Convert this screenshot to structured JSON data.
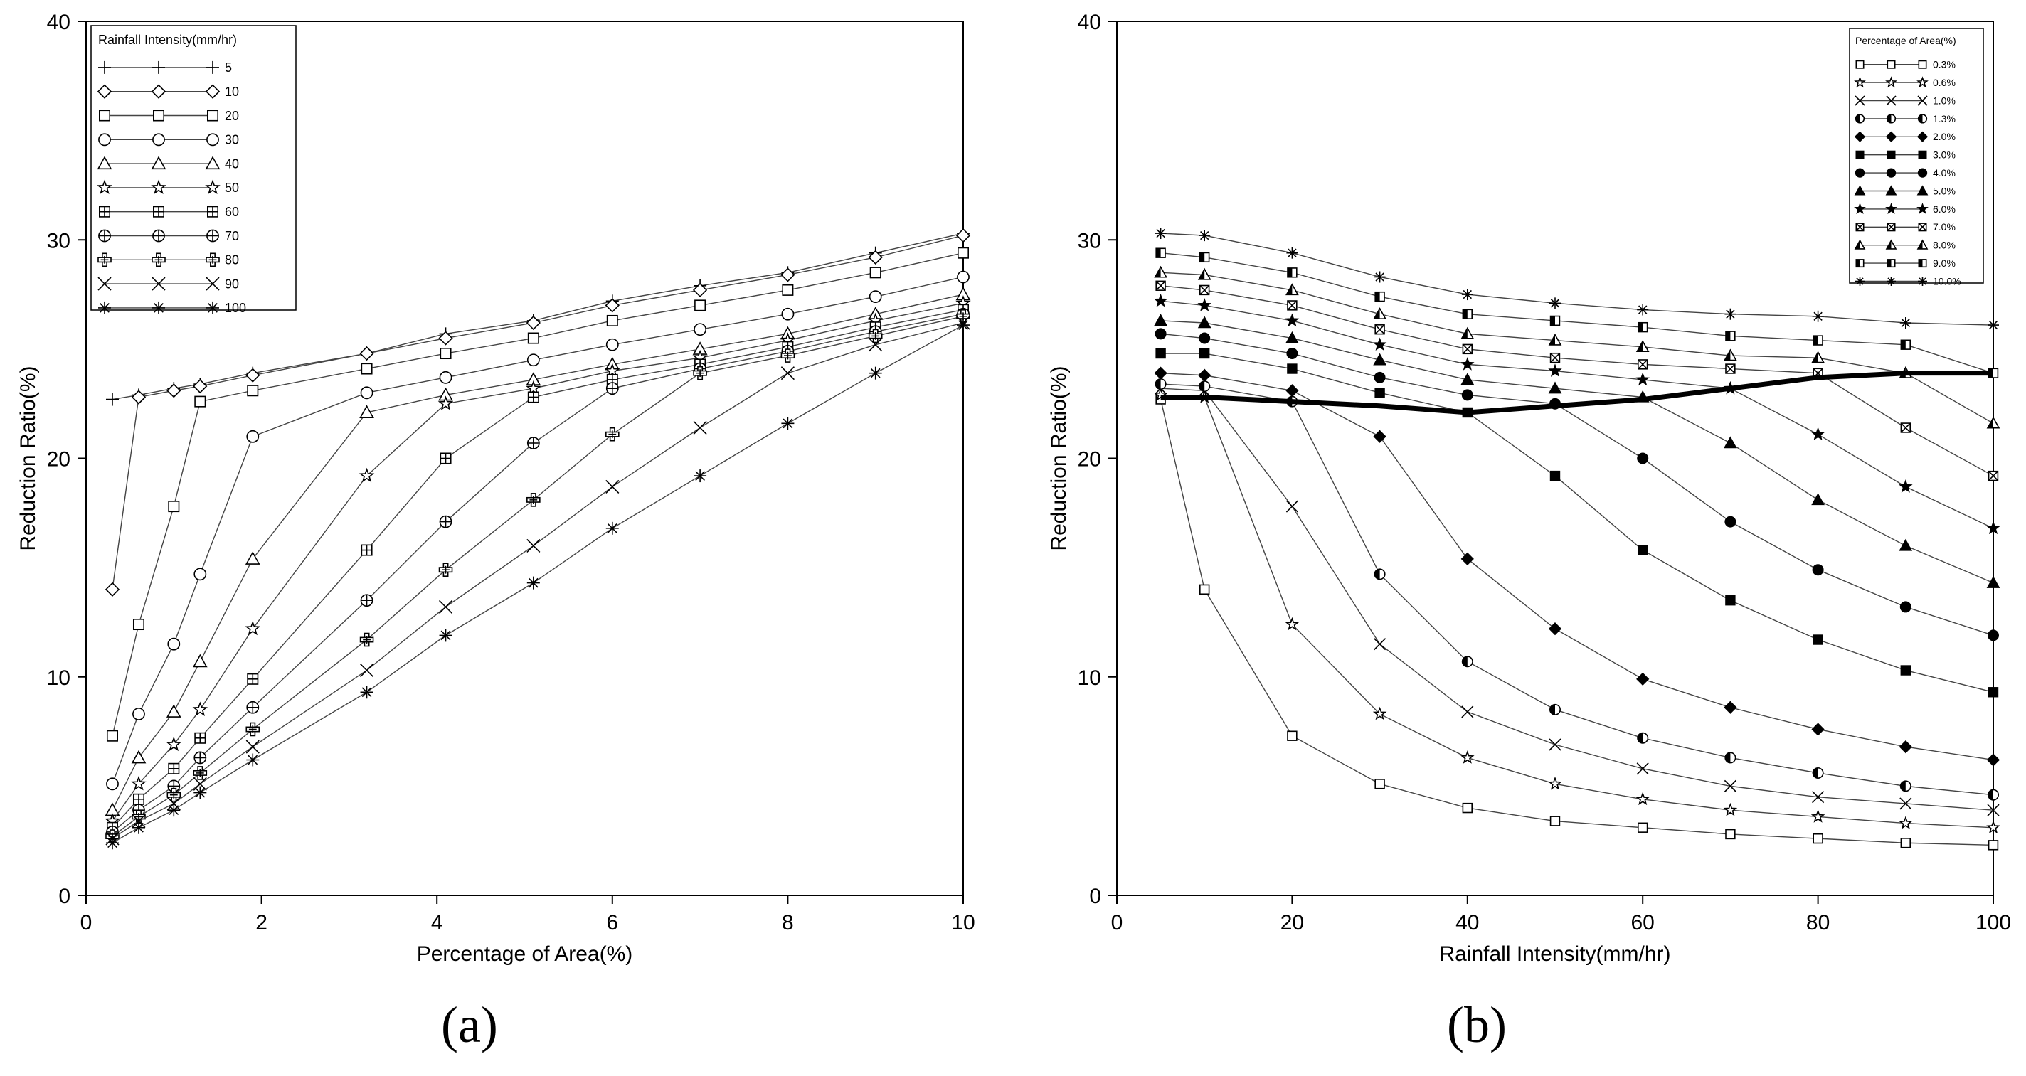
{
  "chart_data": [
    {
      "type": "line",
      "caption": "(a)",
      "xlabel": "Percentage of Area(%)",
      "ylabel": "Reduction Ratio(%)",
      "xlim": [
        0,
        10
      ],
      "ylim": [
        0,
        40
      ],
      "xticks": [
        0,
        2,
        4,
        6,
        8,
        10
      ],
      "yticks": [
        0,
        10,
        20,
        30,
        40
      ],
      "legend_title": "Rainfall Intensity(mm/hr)",
      "legend_position": "top-left",
      "x": [
        0.3,
        0.6,
        1.0,
        1.3,
        1.9,
        3.2,
        4.1,
        5.1,
        6.0,
        7.0,
        8.0,
        9.0,
        10.0
      ],
      "series": [
        {
          "name": "5",
          "marker": "plus",
          "values": [
            22.7,
            22.9,
            23.2,
            23.4,
            23.9,
            24.8,
            25.7,
            26.3,
            27.2,
            27.9,
            28.5,
            29.4,
            30.3
          ]
        },
        {
          "name": "10",
          "marker": "diamond",
          "values": [
            14.0,
            22.8,
            23.1,
            23.3,
            23.8,
            24.8,
            25.5,
            26.2,
            27.0,
            27.7,
            28.4,
            29.2,
            30.2
          ]
        },
        {
          "name": "20",
          "marker": "square",
          "values": [
            7.3,
            12.4,
            17.8,
            22.6,
            23.1,
            24.1,
            24.8,
            25.5,
            26.3,
            27.0,
            27.7,
            28.5,
            29.4
          ]
        },
        {
          "name": "30",
          "marker": "circle",
          "values": [
            5.1,
            8.3,
            11.5,
            14.7,
            21.0,
            23.0,
            23.7,
            24.5,
            25.2,
            25.9,
            26.6,
            27.4,
            28.3
          ]
        },
        {
          "name": "40",
          "marker": "triangle",
          "values": [
            3.9,
            6.3,
            8.4,
            10.7,
            15.4,
            22.1,
            22.9,
            23.6,
            24.3,
            25.0,
            25.7,
            26.6,
            27.5
          ]
        },
        {
          "name": "50",
          "marker": "star",
          "values": [
            3.4,
            5.1,
            6.9,
            8.5,
            12.2,
            19.2,
            22.5,
            23.2,
            24.0,
            24.6,
            25.4,
            26.3,
            27.1
          ]
        },
        {
          "name": "60",
          "marker": "square-plus",
          "values": [
            3.1,
            4.4,
            5.8,
            7.2,
            9.9,
            15.8,
            20.0,
            22.8,
            23.6,
            24.3,
            25.1,
            26.0,
            26.8
          ]
        },
        {
          "name": "70",
          "marker": "circle-plus",
          "values": [
            2.9,
            3.9,
            5.0,
            6.3,
            8.6,
            13.5,
            17.1,
            20.7,
            23.2,
            24.1,
            24.9,
            25.8,
            26.6
          ]
        },
        {
          "name": "80",
          "marker": "bold-plus",
          "values": [
            2.7,
            3.6,
            4.6,
            5.6,
            7.6,
            11.7,
            14.9,
            18.1,
            21.1,
            23.9,
            24.7,
            25.6,
            26.5
          ]
        },
        {
          "name": "90",
          "marker": "x",
          "values": [
            2.6,
            3.4,
            4.2,
            5.1,
            6.8,
            10.3,
            13.2,
            16.0,
            18.7,
            21.4,
            23.9,
            25.2,
            26.2
          ]
        },
        {
          "name": "100",
          "marker": "asterisk",
          "values": [
            2.4,
            3.1,
            3.9,
            4.7,
            6.2,
            9.3,
            11.9,
            14.3,
            16.8,
            19.2,
            21.6,
            23.9,
            26.1
          ]
        }
      ]
    },
    {
      "type": "line",
      "caption": "(b)",
      "xlabel": "Rainfall Intensity(mm/hr)",
      "ylabel": "Reduction Ratio(%)",
      "xlim": [
        0,
        100
      ],
      "ylim": [
        0,
        40
      ],
      "xticks": [
        0,
        20,
        40,
        60,
        80,
        100
      ],
      "yticks": [
        0,
        10,
        20,
        30,
        40
      ],
      "legend_title": "Percentage of Area(%)",
      "legend_position": "top-right",
      "x": [
        5,
        10,
        20,
        30,
        40,
        50,
        60,
        70,
        80,
        90,
        100
      ],
      "series": [
        {
          "name": "0.3%",
          "marker": "square",
          "values": [
            22.7,
            14.0,
            7.3,
            5.1,
            4.0,
            3.4,
            3.1,
            2.8,
            2.6,
            2.4,
            2.3
          ]
        },
        {
          "name": "0.6%",
          "marker": "star",
          "values": [
            22.9,
            22.8,
            12.4,
            8.3,
            6.3,
            5.1,
            4.4,
            3.9,
            3.6,
            3.3,
            3.1
          ]
        },
        {
          "name": "1.0%",
          "marker": "x",
          "values": [
            23.2,
            23.1,
            17.8,
            11.5,
            8.4,
            6.9,
            5.8,
            5.0,
            4.5,
            4.2,
            3.9
          ]
        },
        {
          "name": "1.3%",
          "marker": "half-circle",
          "values": [
            23.4,
            23.3,
            22.6,
            14.7,
            10.7,
            8.5,
            7.2,
            6.3,
            5.6,
            5.0,
            4.6
          ]
        },
        {
          "name": "2.0%",
          "marker": "filled-diamond",
          "values": [
            23.9,
            23.8,
            23.1,
            21.0,
            15.4,
            12.2,
            9.9,
            8.6,
            7.6,
            6.8,
            6.2
          ]
        },
        {
          "name": "3.0%",
          "marker": "filled-square",
          "values": [
            24.8,
            24.8,
            24.1,
            23.0,
            22.1,
            19.2,
            15.8,
            13.5,
            11.7,
            10.3,
            9.3
          ]
        },
        {
          "name": "4.0%",
          "marker": "filled-circle",
          "values": [
            25.7,
            25.5,
            24.8,
            23.7,
            22.9,
            22.5,
            20.0,
            17.1,
            14.9,
            13.2,
            11.9
          ]
        },
        {
          "name": "5.0%",
          "marker": "filled-triangle",
          "values": [
            26.3,
            26.2,
            25.5,
            24.5,
            23.6,
            23.2,
            22.8,
            20.7,
            18.1,
            16.0,
            14.3
          ]
        },
        {
          "name": "6.0%",
          "marker": "filled-star",
          "values": [
            27.2,
            27.0,
            26.3,
            25.2,
            24.3,
            24.0,
            23.6,
            23.2,
            21.1,
            18.7,
            16.8
          ]
        },
        {
          "name": "7.0%",
          "marker": "square-x",
          "values": [
            27.9,
            27.7,
            27.0,
            25.9,
            25.0,
            24.6,
            24.3,
            24.1,
            23.9,
            21.4,
            19.2
          ]
        },
        {
          "name": "8.0%",
          "marker": "half-triangle",
          "values": [
            28.5,
            28.4,
            27.7,
            26.6,
            25.7,
            25.4,
            25.1,
            24.7,
            24.6,
            23.9,
            21.6
          ]
        },
        {
          "name": "9.0%",
          "marker": "half-square",
          "values": [
            29.4,
            29.2,
            28.5,
            27.4,
            26.6,
            26.3,
            26.0,
            25.6,
            25.4,
            25.2,
            23.9
          ]
        },
        {
          "name": "10.0%",
          "marker": "asterisk",
          "values": [
            30.3,
            30.2,
            29.4,
            28.3,
            27.5,
            27.1,
            26.8,
            26.6,
            26.5,
            26.2,
            26.1
          ]
        }
      ],
      "threshold_line": {
        "values": [
          22.8,
          22.8,
          22.6,
          22.4,
          22.1,
          22.4,
          22.7,
          23.2,
          23.7,
          23.9,
          23.9
        ]
      }
    }
  ]
}
